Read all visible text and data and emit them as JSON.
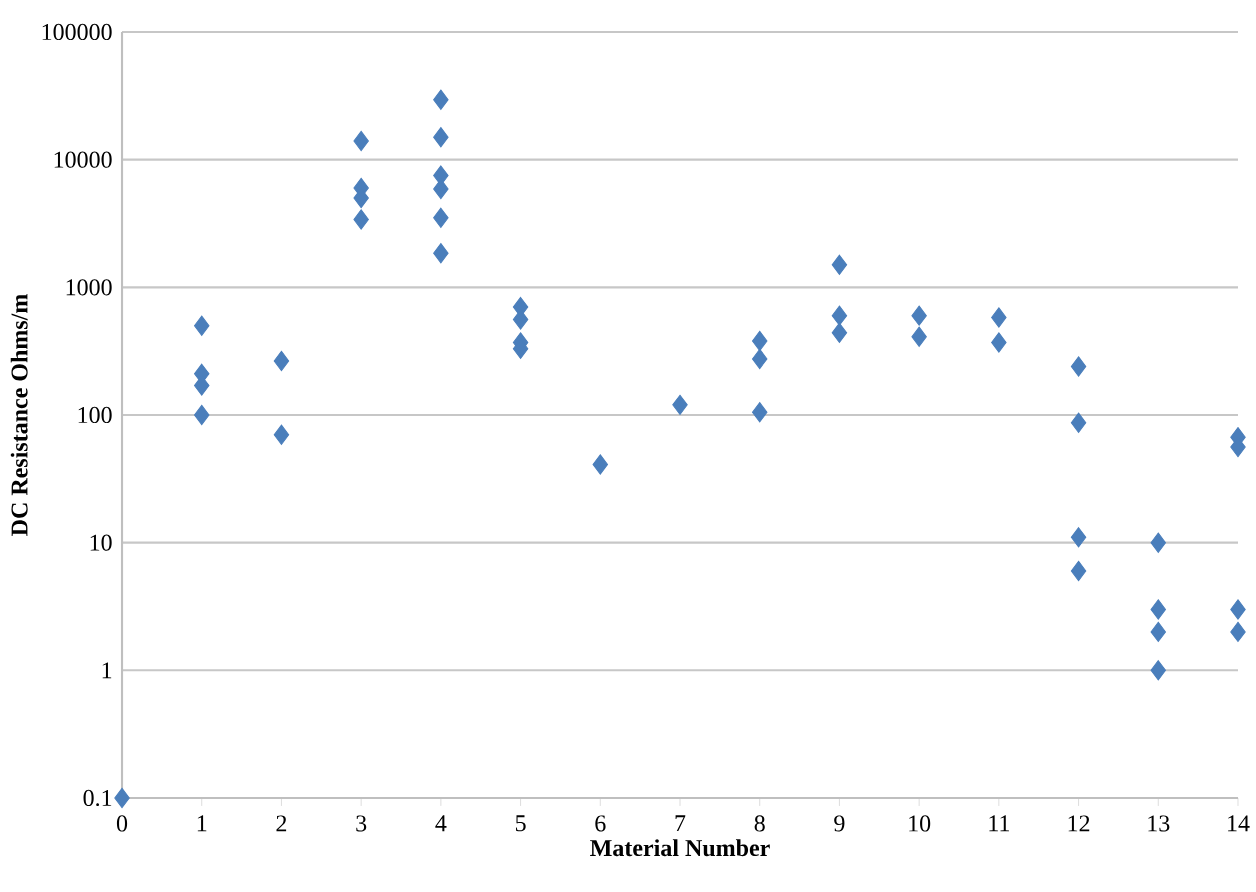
{
  "chart_data": {
    "type": "scatter",
    "xlabel": "Material Number",
    "ylabel": "DC Resistance Ohms/m",
    "series": [
      {
        "color": "#4a7ebb",
        "x": [
          0,
          1,
          1,
          1,
          1,
          2,
          2,
          3,
          3,
          3,
          3,
          4,
          4,
          4,
          4,
          4,
          4,
          5,
          5,
          5,
          5,
          6,
          7,
          8,
          8,
          8,
          9,
          9,
          9,
          10,
          10,
          11,
          11,
          12,
          12,
          12,
          12,
          13,
          13,
          13,
          13,
          14,
          14,
          14,
          14
        ],
        "values": [
          0.1,
          500,
          210,
          170,
          100,
          265,
          70,
          14000,
          6000,
          5000,
          3400,
          29500,
          15000,
          7500,
          5900,
          3500,
          1850,
          700,
          560,
          370,
          330,
          41,
          120,
          380,
          275,
          105,
          1500,
          600,
          440,
          600,
          410,
          580,
          370,
          240,
          87,
          11,
          6,
          10,
          3,
          2,
          1,
          67,
          56,
          3,
          2
        ]
      }
    ],
    "xlim": [
      0,
      14
    ],
    "xticks": [
      0,
      1,
      2,
      3,
      4,
      5,
      6,
      7,
      8,
      9,
      10,
      11,
      12,
      13,
      14
    ],
    "ylim": [
      0.1,
      100000
    ],
    "yticks": [
      0.1,
      1,
      10,
      100,
      1000,
      10000,
      100000
    ],
    "log": "y",
    "grid": "y",
    "marker": "diamond"
  }
}
